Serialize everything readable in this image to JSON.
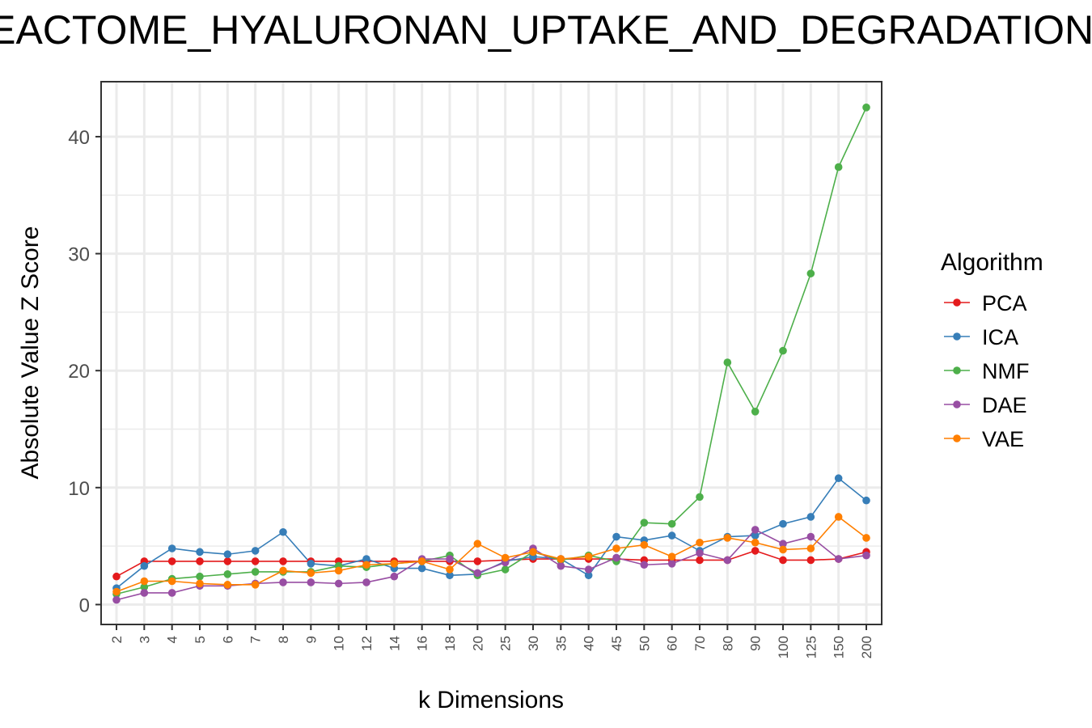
{
  "chart_data": {
    "type": "line",
    "title": "REACTOME_HYALURONAN_UPTAKE_AND_DEGRADATION",
    "xlabel": "k Dimensions",
    "ylabel": "Absolute Value Z Score",
    "x": [
      "2",
      "3",
      "4",
      "5",
      "6",
      "7",
      "8",
      "9",
      "10",
      "12",
      "14",
      "16",
      "18",
      "20",
      "25",
      "30",
      "35",
      "40",
      "45",
      "50",
      "60",
      "70",
      "80",
      "90",
      "100",
      "125",
      "150",
      "200"
    ],
    "ylim": [
      -1.7,
      44.7
    ],
    "yticks": [
      0,
      10,
      20,
      30,
      40
    ],
    "grid": true,
    "legend": {
      "title": "Algorithm",
      "position": "right"
    },
    "series": [
      {
        "name": "PCA",
        "color": "#e41a1c",
        "values": [
          2.4,
          3.7,
          3.7,
          3.7,
          3.7,
          3.7,
          3.7,
          3.7,
          3.7,
          3.7,
          3.7,
          3.7,
          3.7,
          3.7,
          3.8,
          3.9,
          3.9,
          3.9,
          3.9,
          3.8,
          3.8,
          3.8,
          3.8,
          4.6,
          3.8,
          3.8,
          3.9,
          4.5
        ]
      },
      {
        "name": "ICA",
        "color": "#377eb8",
        "values": [
          1.4,
          3.3,
          4.8,
          4.5,
          4.3,
          4.6,
          6.2,
          3.5,
          3.3,
          3.9,
          3.1,
          3.1,
          2.5,
          2.6,
          3.7,
          4.1,
          3.9,
          2.5,
          5.8,
          5.5,
          5.9,
          4.6,
          5.8,
          5.9,
          6.9,
          7.5,
          10.8,
          8.9
        ]
      },
      {
        "name": "NMF",
        "color": "#4daf4a",
        "values": [
          0.9,
          1.5,
          2.2,
          2.4,
          2.6,
          2.8,
          2.8,
          2.8,
          3.3,
          3.2,
          3.5,
          3.7,
          4.2,
          2.5,
          3.0,
          4.5,
          3.8,
          4.2,
          3.7,
          7.0,
          6.9,
          9.2,
          20.7,
          16.5,
          21.7,
          28.3,
          37.4,
          42.5
        ]
      },
      {
        "name": "DAE",
        "color": "#984ea3",
        "values": [
          0.4,
          1.0,
          1.0,
          1.6,
          1.6,
          1.8,
          1.9,
          1.9,
          1.8,
          1.9,
          2.4,
          3.9,
          3.9,
          2.7,
          3.6,
          4.8,
          3.3,
          3.0,
          4.0,
          3.4,
          3.5,
          4.4,
          3.8,
          6.4,
          5.2,
          5.8,
          3.9,
          4.2
        ]
      },
      {
        "name": "VAE",
        "color": "#ff7f00",
        "values": [
          1.1,
          2.0,
          2.0,
          1.8,
          1.7,
          1.7,
          2.9,
          2.7,
          2.9,
          3.4,
          3.5,
          3.7,
          3.0,
          5.2,
          4.0,
          4.5,
          3.9,
          4.1,
          4.8,
          5.1,
          4.1,
          5.3,
          5.7,
          5.3,
          4.7,
          4.8,
          7.5,
          5.7
        ]
      }
    ]
  }
}
